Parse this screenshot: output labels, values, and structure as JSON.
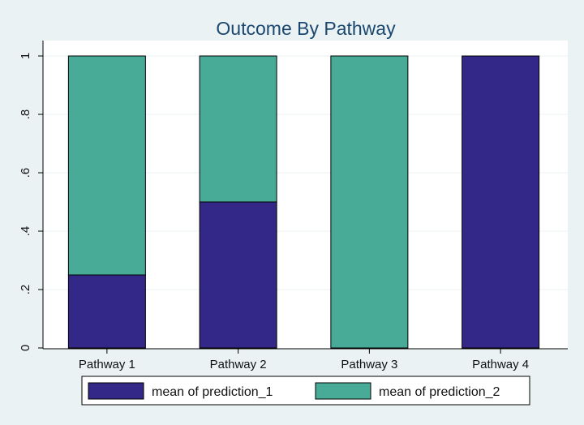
{
  "chart_data": {
    "type": "bar",
    "stacked": true,
    "title": "Outcome By Pathway",
    "xlabel": "",
    "ylabel": "",
    "categories": [
      "Pathway 1",
      "Pathway 2",
      "Pathway 3",
      "Pathway 4"
    ],
    "series": [
      {
        "name": "mean of prediction_1",
        "values": [
          0.25,
          0.5,
          0.0,
          1.0
        ],
        "color": "#332888"
      },
      {
        "name": "mean of prediction_2",
        "values": [
          0.75,
          0.5,
          1.0,
          0.0
        ],
        "color": "#47ab98"
      }
    ],
    "ylim": [
      0,
      1
    ],
    "yticks": [
      0,
      0.2,
      0.4,
      0.6,
      0.8,
      1.0
    ],
    "ytick_labels": [
      "0",
      ".2",
      ".4",
      ".6",
      ".8",
      "1"
    ],
    "grid": true,
    "legend_position": "bottom",
    "colors": {
      "background": "#eaf2f3",
      "plot_background": "#ffffff",
      "grid": "#eaf2f3",
      "title": "#1a476f"
    }
  }
}
